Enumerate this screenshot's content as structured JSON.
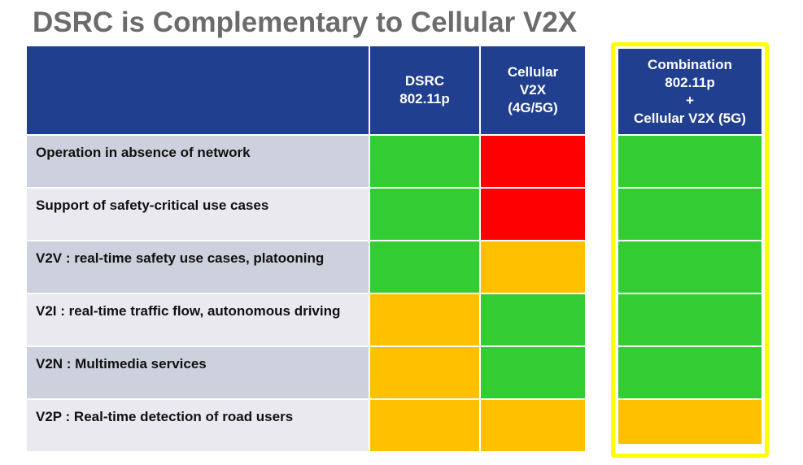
{
  "title": "DSRC is Complementary to Cellular V2X",
  "table": {
    "headers": [
      [
        "DSRC",
        "802.11p"
      ],
      [
        "Cellular",
        "V2X",
        "(4G/5G)"
      ]
    ],
    "combination_header": [
      "Combination",
      "802.11p",
      "+",
      "Cellular V2X (5G)"
    ],
    "rows": [
      {
        "label": "Operation in absence of network",
        "cells": [
          "#33cc33",
          "#ff0000"
        ],
        "combination": "#33cc33"
      },
      {
        "label": "Support of safety-critical use cases",
        "cells": [
          "#33cc33",
          "#ff0000"
        ],
        "combination": "#33cc33"
      },
      {
        "label": "V2V : real-time safety use cases, platooning",
        "cells": [
          "#33cc33",
          "#ffc000"
        ],
        "combination": "#33cc33"
      },
      {
        "label": "V2I : real-time traffic flow, autonomous driving",
        "cells": [
          "#ffc000",
          "#33cc33"
        ],
        "combination": "#33cc33"
      },
      {
        "label": "V2N : Multimedia services",
        "cells": [
          "#ffc000",
          "#33cc33"
        ],
        "combination": "#33cc33"
      },
      {
        "label": "V2P : Real-time detection of road users",
        "cells": [
          "#ffc000",
          "#ffc000"
        ],
        "combination": "#ffc000"
      }
    ]
  }
}
